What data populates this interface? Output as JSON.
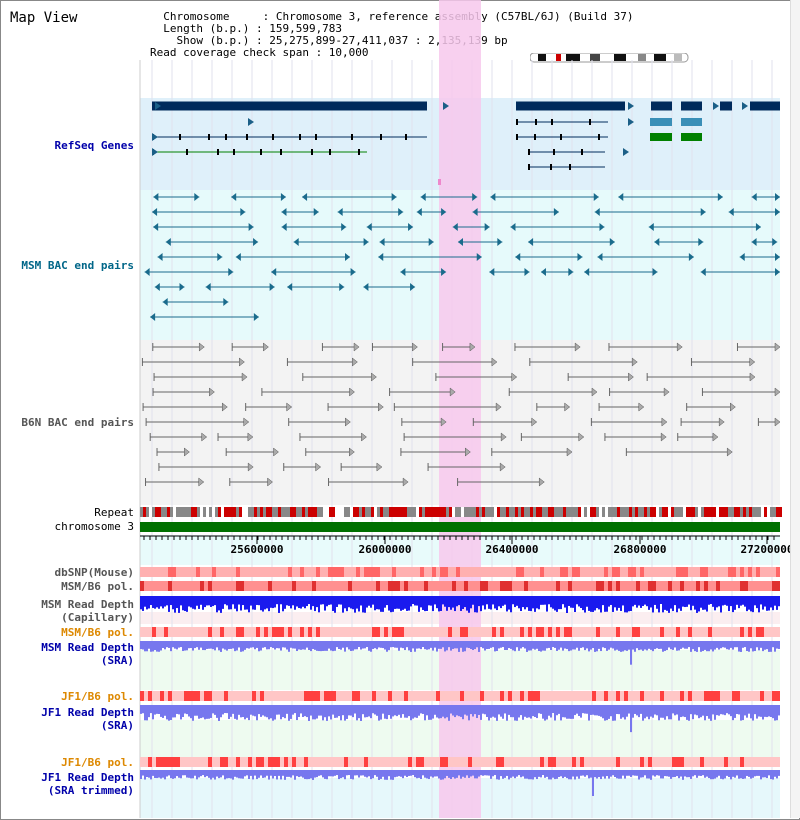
{
  "view": {
    "title": "Map View"
  },
  "info_lines": [
    "  Chromosome     : Chromosome 3, reference assembly (C57BL/6J) (Build 37)",
    "  Length (b.p.) : 159,599,783",
    "    Show (b.p.) : 25,275,899-27,411,037 : 2,135,139 bp",
    "Read coverage check span : 10,000"
  ],
  "tracks": {
    "refseq": "RefSeq Genes",
    "msm_bac": "MSM BAC end pairs",
    "b6n_bac": "B6N BAC end pairs",
    "repeat": "Repeat",
    "chromosome": "chromosome 3",
    "dbsnp": "dbSNP(Mouse)",
    "msm_b6_pol_1": "MSM/B6 pol.",
    "msm_read_depth_cap_1": "MSM Read Depth",
    "msm_read_depth_cap_2": "(Capillary)",
    "msm_b6_pol_2": "MSM/B6 pol.",
    "msm_read_depth_sra_1": "MSM Read Depth",
    "msm_read_depth_sra_2": "(SRA)",
    "jf1_b6_pol_1": "JF1/B6 pol.",
    "jf1_read_depth_sra_1": "JF1 Read Depth",
    "jf1_read_depth_sra_2": "(SRA)",
    "jf1_b6_pol_2": "JF1/B6 pol.",
    "jf1_read_depth_trim_1": "JF1 Read Depth",
    "jf1_read_depth_trim_2": "(SRA trimmed)"
  },
  "axis": {
    "ticks": [
      "25600000",
      "26000000",
      "26400000",
      "26800000",
      "27200000"
    ]
  },
  "colors": {
    "refseq_label": "#0000aa",
    "msm_bac_label": "#006688",
    "b6n_bac_label": "#555555",
    "pol_label": "#dd8800",
    "depth_label": "#0000aa",
    "gene_dark": "#002b5c",
    "gene_mid": "#3a8fb7",
    "gene_green": "#008000",
    "bac_msm": "#1a6b8c",
    "bac_b6n": "#666666",
    "highlight": "#f7c8ec",
    "depth_cap": "#1a1aee",
    "depth_sra": "#7777ee"
  }
}
